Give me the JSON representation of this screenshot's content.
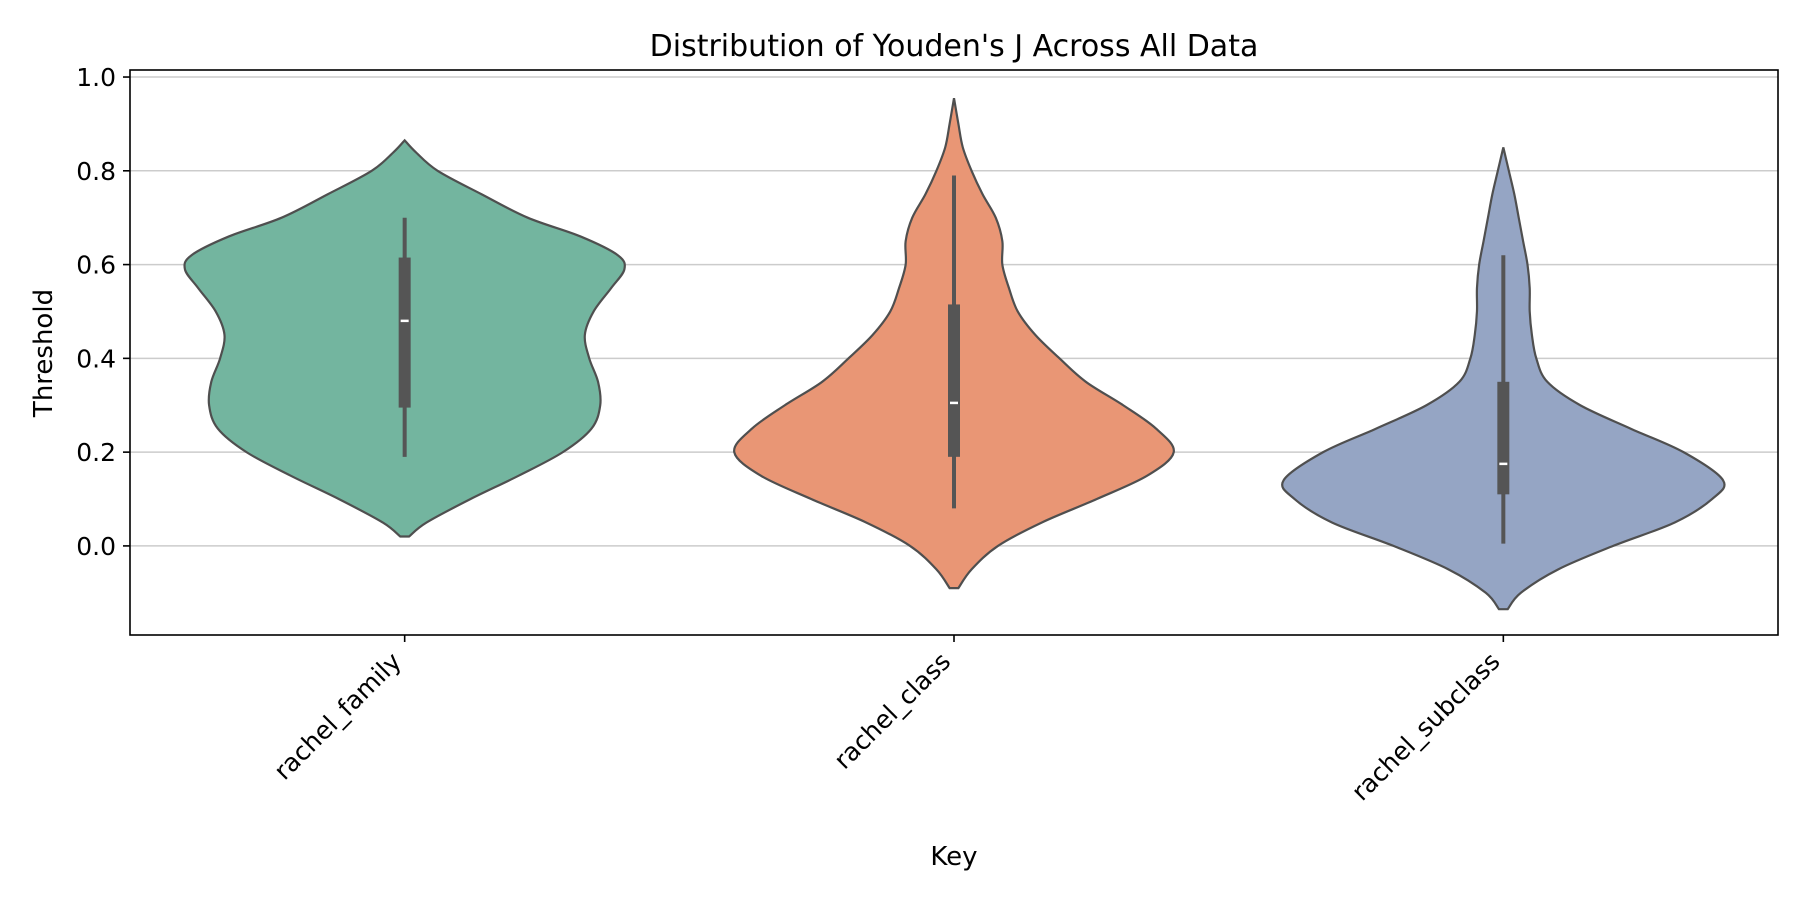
{
  "chart_data": {
    "type": "violin",
    "title": "Distribution of Youden's J Across All Data",
    "xlabel": "Key",
    "ylabel": "Threshold",
    "ylim": [
      -0.19,
      1.015
    ],
    "yticks": [
      "0.0",
      "0.2",
      "0.4",
      "0.6",
      "0.8",
      "1.0"
    ],
    "ytick_values": [
      0.0,
      0.2,
      0.4,
      0.6,
      0.8,
      1.0
    ],
    "grid": "horizontal",
    "categories": [
      "rachel_family",
      "rachel_class",
      "rachel_subclass"
    ],
    "violins": [
      {
        "category": "rachel_family",
        "color": "#73b59f",
        "min": 0.19,
        "q1": 0.295,
        "median": 0.48,
        "q3": 0.615,
        "max": 0.7,
        "kde_low": 0.02,
        "kde_high": 0.865,
        "profile": [
          [
            0.02,
            0.02
          ],
          [
            0.05,
            0.1
          ],
          [
            0.1,
            0.3
          ],
          [
            0.15,
            0.52
          ],
          [
            0.2,
            0.72
          ],
          [
            0.25,
            0.85
          ],
          [
            0.3,
            0.89
          ],
          [
            0.35,
            0.88
          ],
          [
            0.4,
            0.84
          ],
          [
            0.45,
            0.82
          ],
          [
            0.5,
            0.86
          ],
          [
            0.55,
            0.94
          ],
          [
            0.59,
            1.0
          ],
          [
            0.62,
            0.97
          ],
          [
            0.66,
            0.8
          ],
          [
            0.7,
            0.56
          ],
          [
            0.75,
            0.35
          ],
          [
            0.8,
            0.15
          ],
          [
            0.84,
            0.05
          ],
          [
            0.865,
            0.0
          ]
        ]
      },
      {
        "category": "rachel_class",
        "color": "#e99675",
        "min": 0.08,
        "q1": 0.19,
        "median": 0.305,
        "q3": 0.515,
        "max": 0.79,
        "kde_low": -0.09,
        "kde_high": 0.955,
        "profile": [
          [
            -0.09,
            0.02
          ],
          [
            -0.05,
            0.08
          ],
          [
            0.0,
            0.2
          ],
          [
            0.05,
            0.4
          ],
          [
            0.1,
            0.65
          ],
          [
            0.15,
            0.88
          ],
          [
            0.2,
            1.0
          ],
          [
            0.25,
            0.92
          ],
          [
            0.3,
            0.77
          ],
          [
            0.35,
            0.6
          ],
          [
            0.4,
            0.48
          ],
          [
            0.45,
            0.37
          ],
          [
            0.5,
            0.29
          ],
          [
            0.55,
            0.25
          ],
          [
            0.6,
            0.22
          ],
          [
            0.65,
            0.22
          ],
          [
            0.7,
            0.19
          ],
          [
            0.75,
            0.13
          ],
          [
            0.8,
            0.08
          ],
          [
            0.85,
            0.04
          ],
          [
            0.9,
            0.02
          ],
          [
            0.955,
            0.0
          ]
        ]
      },
      {
        "category": "rachel_subclass",
        "color": "#95a5c4",
        "min": 0.005,
        "q1": 0.11,
        "median": 0.175,
        "q3": 0.35,
        "max": 0.62,
        "kde_low": -0.135,
        "kde_high": 0.85,
        "profile": [
          [
            -0.135,
            0.02
          ],
          [
            -0.1,
            0.08
          ],
          [
            -0.05,
            0.25
          ],
          [
            0.0,
            0.5
          ],
          [
            0.05,
            0.78
          ],
          [
            0.1,
            0.95
          ],
          [
            0.14,
            1.0
          ],
          [
            0.2,
            0.82
          ],
          [
            0.25,
            0.58
          ],
          [
            0.3,
            0.35
          ],
          [
            0.35,
            0.2
          ],
          [
            0.4,
            0.15
          ],
          [
            0.45,
            0.13
          ],
          [
            0.5,
            0.12
          ],
          [
            0.55,
            0.12
          ],
          [
            0.6,
            0.11
          ],
          [
            0.65,
            0.09
          ],
          [
            0.7,
            0.07
          ],
          [
            0.75,
            0.05
          ],
          [
            0.8,
            0.025
          ],
          [
            0.85,
            0.0
          ]
        ]
      }
    ]
  }
}
